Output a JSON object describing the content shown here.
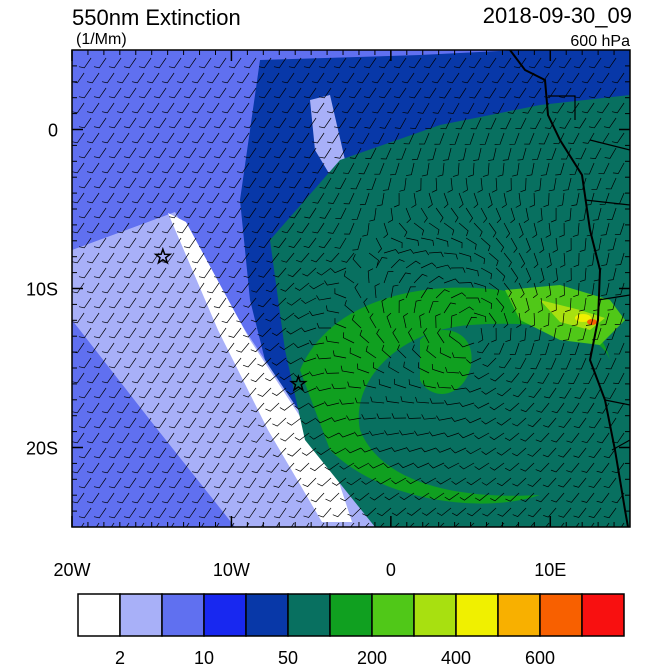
{
  "map": {
    "title": "550nm Extinction",
    "units": "(1/Mm)",
    "time": "2018-09-30_09",
    "level": "600 hPa",
    "lonlim": [
      -20,
      15
    ],
    "latlim": [
      -25,
      5
    ],
    "lon_ticks": [
      {
        "value": -20,
        "label": "20W"
      },
      {
        "value": -10,
        "label": "10W"
      },
      0,
      {
        "value": 10,
        "label": "10E"
      }
    ],
    "lat_ticks": [
      0,
      {
        "value": -10,
        "label": "10S"
      },
      {
        "value": -20,
        "label": "20S"
      }
    ],
    "markers": [
      {
        "lon": -14.3,
        "lat": -8
      },
      {
        "lon": -5.8,
        "lat": -16
      }
    ],
    "colorbar": {
      "colors": [
        "#ffffff",
        "#a8b0f8",
        "#6070f0",
        "#1828f0",
        "#0838a8",
        "#087060",
        "#10a020",
        "#50c818",
        "#a8e010",
        "#f0f000",
        "#f8b000",
        "#f86000",
        "#f81010"
      ],
      "labels": [
        "2",
        "10",
        "50",
        "200",
        "400",
        "600"
      ]
    }
  }
}
